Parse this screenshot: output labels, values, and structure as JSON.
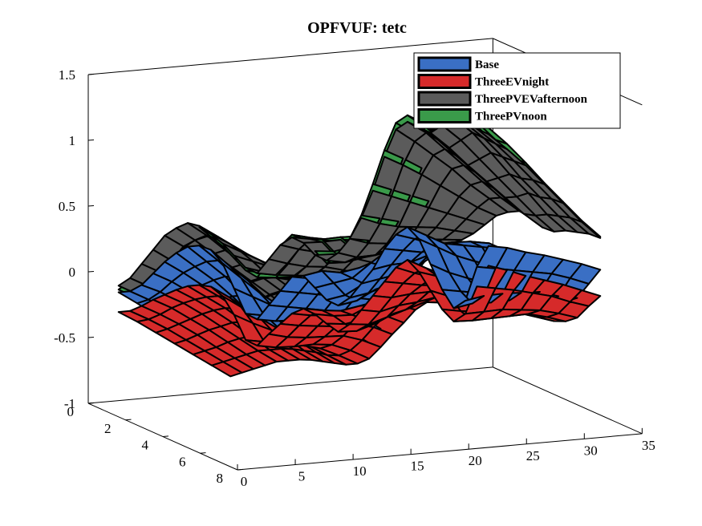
{
  "chart_data": {
    "type": "surface3d",
    "title": "OPFVUF: tetc",
    "xlabel": "",
    "ylabel": "",
    "zlabel": "",
    "xlim": [
      0,
      35
    ],
    "ylim": [
      0,
      8
    ],
    "zlim": [
      -1,
      1.5
    ],
    "x_ticks": [
      "0",
      "5",
      "10",
      "15",
      "20",
      "25",
      "30",
      "35"
    ],
    "y_ticks": [
      "0",
      "2",
      "4",
      "6",
      "8"
    ],
    "z_ticks": [
      "1.5",
      "1",
      "0.5",
      "0",
      "-0.5",
      "-1"
    ],
    "legend": {
      "placement": "top-right"
    },
    "grid": "size 33 x 7 (x = 1..33, y = 1..7)",
    "series": [
      {
        "name": "Base",
        "color": "#3a6fc4",
        "z": [
          [
            -0.1,
            -0.1,
            -0.06,
            0.02,
            0.1,
            0.16,
            0.2,
            0.2,
            0.16,
            0.05,
            -0.15,
            -0.35,
            -0.4,
            -0.3,
            -0.2,
            -0.1,
            -0.1,
            -0.2,
            -0.3,
            -0.35,
            -0.3,
            -0.2,
            -0.1,
            0.05,
            0.15,
            0.2,
            0.1,
            -0.1,
            -0.3,
            -0.45,
            -0.4,
            -0.15,
            0.0
          ],
          [
            -0.12,
            -0.1,
            -0.05,
            0.02,
            0.08,
            0.12,
            0.15,
            0.15,
            0.1,
            0.0,
            -0.15,
            -0.3,
            -0.35,
            -0.25,
            -0.15,
            -0.05,
            0.0,
            -0.1,
            -0.2,
            -0.25,
            -0.2,
            -0.1,
            0.0,
            0.1,
            0.18,
            0.2,
            0.1,
            -0.1,
            -0.25,
            -0.35,
            -0.3,
            -0.1,
            0.05
          ],
          [
            -0.15,
            -0.12,
            -0.06,
            0.0,
            0.05,
            0.08,
            0.1,
            0.08,
            0.05,
            -0.05,
            -0.15,
            -0.25,
            -0.28,
            -0.2,
            -0.1,
            0.0,
            0.05,
            0.0,
            -0.05,
            -0.1,
            -0.08,
            0.0,
            0.08,
            0.15,
            0.2,
            0.2,
            0.1,
            -0.08,
            -0.2,
            -0.28,
            -0.22,
            -0.05,
            0.08
          ],
          [
            -0.18,
            -0.15,
            -0.1,
            -0.05,
            0.0,
            0.02,
            0.02,
            0.0,
            -0.02,
            -0.08,
            -0.15,
            -0.22,
            -0.22,
            -0.15,
            -0.05,
            0.05,
            0.15,
            0.18,
            0.15,
            0.1,
            0.08,
            0.12,
            0.2,
            0.25,
            0.28,
            0.25,
            0.12,
            -0.05,
            -0.15,
            -0.2,
            -0.15,
            0.0,
            0.12
          ],
          [
            -0.2,
            -0.18,
            -0.15,
            -0.1,
            -0.05,
            -0.05,
            -0.05,
            -0.08,
            -0.1,
            -0.12,
            -0.18,
            -0.2,
            -0.18,
            -0.1,
            0.0,
            0.1,
            0.25,
            0.35,
            0.35,
            0.3,
            0.25,
            0.28,
            0.32,
            0.35,
            0.35,
            0.3,
            0.15,
            0.0,
            -0.1,
            -0.12,
            -0.08,
            0.05,
            0.15
          ],
          [
            -0.22,
            -0.2,
            -0.18,
            -0.15,
            -0.12,
            -0.12,
            -0.12,
            -0.15,
            -0.18,
            -0.2,
            -0.22,
            -0.22,
            -0.18,
            -0.08,
            0.05,
            0.15,
            0.3,
            0.4,
            0.45,
            0.4,
            0.35,
            0.35,
            0.38,
            0.4,
            0.4,
            0.35,
            0.2,
            0.05,
            -0.05,
            -0.08,
            -0.05,
            0.08,
            0.18
          ],
          [
            -0.25,
            -0.22,
            -0.2,
            -0.18,
            -0.16,
            -0.16,
            -0.16,
            -0.18,
            -0.2,
            -0.22,
            -0.24,
            -0.24,
            -0.2,
            -0.1,
            0.05,
            0.15,
            0.3,
            0.4,
            0.45,
            0.4,
            0.35,
            0.35,
            0.38,
            0.4,
            0.4,
            0.35,
            0.22,
            0.08,
            0.0,
            -0.02,
            0.0,
            0.1,
            0.2
          ]
        ]
      },
      {
        "name": "ThreeEVnight",
        "color": "#d62a2a",
        "z": [
          [
            -0.25,
            -0.25,
            -0.22,
            -0.18,
            -0.15,
            -0.12,
            -0.1,
            -0.1,
            -0.12,
            -0.2,
            -0.35,
            -0.55,
            -0.6,
            -0.52,
            -0.45,
            -0.38,
            -0.35,
            -0.4,
            -0.48,
            -0.55,
            -0.5,
            -0.4,
            -0.3,
            -0.2,
            -0.1,
            -0.05,
            -0.15,
            -0.3,
            -0.45,
            -0.55,
            -0.5,
            -0.3,
            -0.15
          ],
          [
            -0.26,
            -0.25,
            -0.22,
            -0.18,
            -0.15,
            -0.13,
            -0.12,
            -0.12,
            -0.14,
            -0.22,
            -0.35,
            -0.5,
            -0.55,
            -0.48,
            -0.4,
            -0.33,
            -0.3,
            -0.35,
            -0.42,
            -0.48,
            -0.44,
            -0.35,
            -0.25,
            -0.15,
            -0.08,
            -0.05,
            -0.12,
            -0.28,
            -0.4,
            -0.48,
            -0.42,
            -0.25,
            -0.12
          ],
          [
            -0.28,
            -0.26,
            -0.23,
            -0.2,
            -0.17,
            -0.15,
            -0.14,
            -0.15,
            -0.17,
            -0.24,
            -0.34,
            -0.45,
            -0.48,
            -0.42,
            -0.34,
            -0.27,
            -0.24,
            -0.28,
            -0.32,
            -0.36,
            -0.32,
            -0.24,
            -0.16,
            -0.1,
            -0.05,
            -0.04,
            -0.1,
            -0.24,
            -0.34,
            -0.4,
            -0.34,
            -0.2,
            -0.1
          ],
          [
            -0.3,
            -0.28,
            -0.25,
            -0.22,
            -0.2,
            -0.18,
            -0.18,
            -0.19,
            -0.21,
            -0.26,
            -0.33,
            -0.4,
            -0.4,
            -0.35,
            -0.28,
            -0.2,
            -0.14,
            -0.14,
            -0.18,
            -0.22,
            -0.2,
            -0.15,
            -0.08,
            -0.04,
            -0.02,
            -0.02,
            -0.08,
            -0.2,
            -0.28,
            -0.32,
            -0.28,
            -0.16,
            -0.07
          ],
          [
            -0.32,
            -0.3,
            -0.28,
            -0.25,
            -0.23,
            -0.22,
            -0.22,
            -0.23,
            -0.25,
            -0.28,
            -0.33,
            -0.36,
            -0.34,
            -0.28,
            -0.2,
            -0.12,
            -0.04,
            0.0,
            -0.02,
            -0.06,
            -0.08,
            -0.05,
            -0.02,
            0.0,
            0.0,
            -0.02,
            -0.08,
            -0.16,
            -0.22,
            -0.24,
            -0.22,
            -0.12,
            -0.04
          ],
          [
            -0.34,
            -0.32,
            -0.3,
            -0.28,
            -0.26,
            -0.26,
            -0.26,
            -0.27,
            -0.29,
            -0.31,
            -0.34,
            -0.35,
            -0.32,
            -0.25,
            -0.16,
            -0.08,
            0.0,
            0.05,
            0.05,
            0.02,
            -0.02,
            -0.02,
            0.0,
            0.02,
            0.02,
            0.0,
            -0.06,
            -0.14,
            -0.19,
            -0.2,
            -0.18,
            -0.1,
            -0.02
          ],
          [
            -0.36,
            -0.34,
            -0.32,
            -0.3,
            -0.28,
            -0.28,
            -0.28,
            -0.29,
            -0.31,
            -0.33,
            -0.35,
            -0.35,
            -0.32,
            -0.24,
            -0.15,
            -0.07,
            0.02,
            0.07,
            0.08,
            0.05,
            0.02,
            0.02,
            0.03,
            0.04,
            0.04,
            0.02,
            -0.04,
            -0.11,
            -0.16,
            -0.17,
            -0.15,
            -0.07,
            0.0
          ]
        ]
      },
      {
        "name": "ThreePVEVafternoon",
        "color": "#5b5b5b",
        "z": [
          [
            -0.05,
            0.0,
            0.1,
            0.2,
            0.3,
            0.35,
            0.38,
            0.35,
            0.28,
            0.2,
            0.1,
            0.0,
            -0.05,
            0.05,
            0.15,
            0.2,
            0.15,
            0.05,
            0.0,
            0.05,
            0.15,
            0.3,
            0.5,
            0.75,
            0.95,
            1.0,
            0.95,
            0.9,
            0.95,
            1.0,
            0.95,
            0.9,
            0.85
          ],
          [
            -0.05,
            0.0,
            0.1,
            0.18,
            0.28,
            0.32,
            0.35,
            0.33,
            0.27,
            0.2,
            0.12,
            0.03,
            0.0,
            0.08,
            0.18,
            0.25,
            0.22,
            0.12,
            0.05,
            0.08,
            0.18,
            0.32,
            0.52,
            0.75,
            0.92,
            0.98,
            0.92,
            0.85,
            0.9,
            0.95,
            0.9,
            0.85,
            0.8
          ],
          [
            -0.06,
            -0.02,
            0.08,
            0.15,
            0.24,
            0.28,
            0.3,
            0.3,
            0.25,
            0.2,
            0.14,
            0.08,
            0.06,
            0.12,
            0.22,
            0.3,
            0.3,
            0.22,
            0.15,
            0.16,
            0.24,
            0.36,
            0.54,
            0.74,
            0.88,
            0.92,
            0.86,
            0.78,
            0.82,
            0.86,
            0.82,
            0.78,
            0.74
          ],
          [
            -0.08,
            -0.04,
            0.05,
            0.12,
            0.2,
            0.24,
            0.26,
            0.26,
            0.23,
            0.2,
            0.16,
            0.12,
            0.12,
            0.18,
            0.26,
            0.34,
            0.36,
            0.32,
            0.26,
            0.26,
            0.32,
            0.42,
            0.56,
            0.72,
            0.84,
            0.86,
            0.8,
            0.72,
            0.74,
            0.76,
            0.72,
            0.7,
            0.66
          ],
          [
            -0.1,
            -0.06,
            0.02,
            0.08,
            0.16,
            0.2,
            0.22,
            0.22,
            0.2,
            0.18,
            0.16,
            0.15,
            0.16,
            0.22,
            0.3,
            0.38,
            0.42,
            0.4,
            0.36,
            0.36,
            0.4,
            0.48,
            0.58,
            0.7,
            0.78,
            0.8,
            0.74,
            0.66,
            0.66,
            0.68,
            0.64,
            0.62,
            0.58
          ],
          [
            -0.12,
            -0.08,
            -0.02,
            0.05,
            0.12,
            0.16,
            0.18,
            0.18,
            0.17,
            0.16,
            0.16,
            0.17,
            0.19,
            0.25,
            0.33,
            0.41,
            0.46,
            0.46,
            0.44,
            0.44,
            0.46,
            0.52,
            0.6,
            0.68,
            0.74,
            0.74,
            0.68,
            0.6,
            0.58,
            0.58,
            0.56,
            0.54,
            0.5
          ],
          [
            -0.14,
            -0.1,
            -0.05,
            0.02,
            0.08,
            0.12,
            0.14,
            0.14,
            0.14,
            0.14,
            0.15,
            0.17,
            0.2,
            0.26,
            0.34,
            0.42,
            0.48,
            0.5,
            0.5,
            0.5,
            0.52,
            0.56,
            0.62,
            0.68,
            0.7,
            0.7,
            0.64,
            0.56,
            0.52,
            0.52,
            0.5,
            0.48,
            0.44
          ]
        ]
      },
      {
        "name": "ThreePVnoon",
        "color": "#3a9a4a",
        "z": [
          [
            -0.08,
            -0.02,
            0.08,
            0.18,
            0.28,
            0.34,
            0.36,
            0.34,
            0.26,
            0.18,
            0.08,
            -0.02,
            -0.08,
            0.02,
            0.14,
            0.22,
            0.18,
            0.08,
            -0.02,
            0.02,
            0.15,
            0.32,
            0.55,
            0.8,
            1.0,
            1.05,
            1.0,
            0.95,
            1.0,
            1.05,
            1.0,
            0.95,
            0.9
          ],
          [
            -0.08,
            -0.02,
            0.08,
            0.17,
            0.27,
            0.32,
            0.34,
            0.32,
            0.26,
            0.19,
            0.1,
            0.02,
            -0.02,
            0.07,
            0.18,
            0.26,
            0.24,
            0.14,
            0.05,
            0.08,
            0.2,
            0.36,
            0.57,
            0.8,
            0.98,
            1.02,
            0.97,
            0.9,
            0.94,
            0.98,
            0.94,
            0.88,
            0.84
          ],
          [
            -0.09,
            -0.03,
            0.06,
            0.14,
            0.23,
            0.28,
            0.3,
            0.29,
            0.24,
            0.19,
            0.13,
            0.07,
            0.05,
            0.12,
            0.22,
            0.31,
            0.32,
            0.24,
            0.16,
            0.17,
            0.26,
            0.4,
            0.59,
            0.79,
            0.94,
            0.97,
            0.91,
            0.82,
            0.86,
            0.89,
            0.85,
            0.8,
            0.76
          ],
          [
            -0.11,
            -0.05,
            0.03,
            0.11,
            0.19,
            0.24,
            0.26,
            0.26,
            0.22,
            0.19,
            0.15,
            0.11,
            0.11,
            0.18,
            0.27,
            0.36,
            0.39,
            0.34,
            0.28,
            0.28,
            0.35,
            0.46,
            0.61,
            0.77,
            0.89,
            0.91,
            0.84,
            0.75,
            0.77,
            0.79,
            0.75,
            0.71,
            0.67
          ],
          [
            -0.13,
            -0.07,
            0.0,
            0.07,
            0.15,
            0.19,
            0.21,
            0.21,
            0.19,
            0.17,
            0.15,
            0.14,
            0.16,
            0.22,
            0.31,
            0.4,
            0.45,
            0.43,
            0.38,
            0.38,
            0.43,
            0.51,
            0.62,
            0.74,
            0.82,
            0.84,
            0.77,
            0.68,
            0.68,
            0.7,
            0.66,
            0.63,
            0.59
          ],
          [
            -0.15,
            -0.09,
            -0.03,
            0.04,
            0.11,
            0.15,
            0.17,
            0.17,
            0.16,
            0.15,
            0.15,
            0.16,
            0.19,
            0.26,
            0.35,
            0.43,
            0.49,
            0.49,
            0.47,
            0.47,
            0.49,
            0.55,
            0.63,
            0.71,
            0.77,
            0.77,
            0.7,
            0.61,
            0.59,
            0.59,
            0.57,
            0.55,
            0.51
          ],
          [
            -0.17,
            -0.11,
            -0.06,
            0.01,
            0.07,
            0.11,
            0.13,
            0.13,
            0.13,
            0.13,
            0.14,
            0.16,
            0.2,
            0.27,
            0.36,
            0.44,
            0.51,
            0.53,
            0.53,
            0.53,
            0.55,
            0.59,
            0.65,
            0.71,
            0.73,
            0.73,
            0.66,
            0.57,
            0.53,
            0.53,
            0.51,
            0.49,
            0.45
          ]
        ]
      }
    ]
  }
}
